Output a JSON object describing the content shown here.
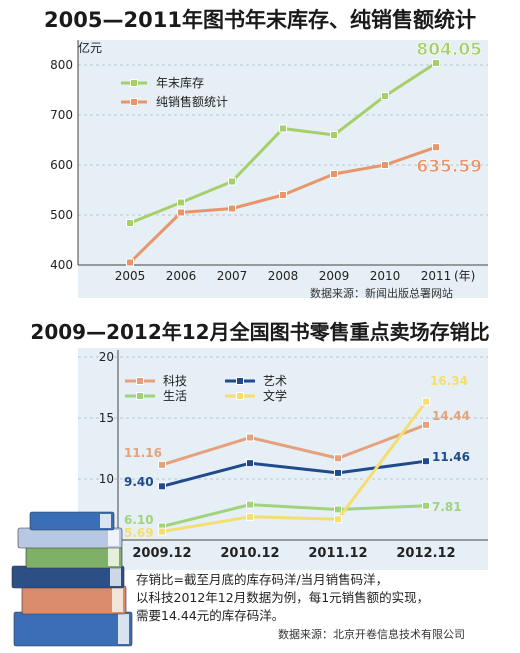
{
  "chart_data": [
    {
      "type": "line",
      "title": "2005—2011年图书年末库存、纯销售额统计",
      "ylabel": "亿元",
      "categories": [
        "2005",
        "2006",
        "2007",
        "2008",
        "2009",
        "2010",
        "2011"
      ],
      "x_unit": "(年)",
      "yticks": [
        400,
        500,
        600,
        700,
        800
      ],
      "ylim": [
        400,
        810
      ],
      "series": [
        {
          "name": "年末库存",
          "color": "#a6cf6a",
          "values": [
            484,
            525,
            567,
            673,
            660,
            738,
            804.05
          ]
        },
        {
          "name": "纯销售额统计",
          "color": "#e8956a",
          "values": [
            405,
            505,
            513,
            540,
            582,
            600,
            635.59
          ]
        }
      ],
      "annotations": [
        {
          "text": "804.05",
          "series": 0,
          "index": 6,
          "color": "#a6cf6a"
        },
        {
          "text": "635.59",
          "series": 1,
          "index": 6,
          "color": "#e8956a"
        }
      ],
      "legend": "top-left",
      "source": "数据来源：新闻出版总署网站"
    },
    {
      "type": "line",
      "title": "2009—2012年12月全国图书零售重点卖场存销比",
      "categories": [
        "2009.12",
        "2010.12",
        "2011.12",
        "2012.12"
      ],
      "yticks": [
        10,
        15,
        20
      ],
      "ylim": [
        5,
        20
      ],
      "series": [
        {
          "name": "科技",
          "color": "#e4a17b",
          "values": [
            11.16,
            13.4,
            11.7,
            14.44
          ]
        },
        {
          "name": "艺术",
          "color": "#1f4a8c",
          "values": [
            9.4,
            11.3,
            10.5,
            11.46
          ]
        },
        {
          "name": "生活",
          "color": "#9fd47c",
          "values": [
            6.1,
            7.9,
            7.5,
            7.81
          ]
        },
        {
          "name": "文学",
          "color": "#f4de6e",
          "values": [
            5.69,
            6.9,
            6.7,
            16.34
          ]
        }
      ],
      "data_labels": [
        {
          "text": "11.16",
          "series": 0,
          "index": 0
        },
        {
          "text": "14.44",
          "series": 0,
          "index": 3
        },
        {
          "text": "9.40",
          "series": 1,
          "index": 0
        },
        {
          "text": "11.46",
          "series": 1,
          "index": 3
        },
        {
          "text": "6.10",
          "series": 2,
          "index": 0
        },
        {
          "text": "7.81",
          "series": 2,
          "index": 3
        },
        {
          "text": "5.69",
          "series": 3,
          "index": 0
        },
        {
          "text": "16.34",
          "series": 3,
          "index": 3
        }
      ],
      "legend": "top-left",
      "note": [
        "存销比=截至月底的库存码洋/当月销售码洋，",
        "以科技2012年12月数据为例，每1元销售额的实现，",
        "需要14.44元的库存码洋。"
      ],
      "source": "数据来源：北京开卷信息技术有限公司"
    }
  ]
}
